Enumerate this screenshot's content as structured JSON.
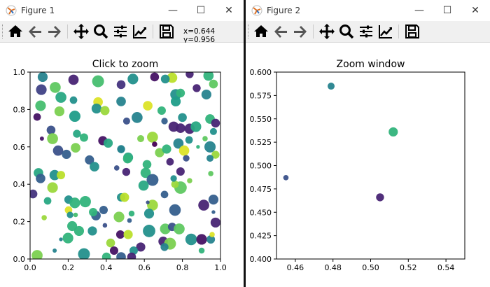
{
  "windows": [
    {
      "title": "Figure 1",
      "coords": "x=0.644 y=0.956",
      "controls": {
        "minimize": "—",
        "maximize": "☐",
        "close": "✕"
      }
    },
    {
      "title": "Figure 2",
      "coords": "",
      "controls": {
        "minimize": "—",
        "maximize": "☐",
        "close": "✕"
      }
    }
  ],
  "toolbar": [
    "home-icon",
    "back-icon",
    "forward-icon",
    "pan-icon",
    "zoom-icon",
    "configure-subplots-icon",
    "edit-axis-icon",
    "save-icon"
  ],
  "chart_data": [
    {
      "type": "scatter",
      "title": "Click to zoom",
      "xlim": [
        0,
        1
      ],
      "ylim": [
        0,
        1
      ],
      "xticks": [
        "0.0",
        "0.2",
        "0.4",
        "0.6",
        "0.8",
        "1.0"
      ],
      "yticks": [
        "0.0",
        "0.2",
        "0.4",
        "0.6",
        "0.8",
        "1.0"
      ],
      "colormap": "viridis",
      "grid": false,
      "points": [
        [
          0.066,
          0.974,
          0.45,
          140
        ],
        [
          0.228,
          0.959,
          0.1,
          150
        ],
        [
          0.357,
          0.951,
          0.7,
          200
        ],
        [
          0.059,
          0.906,
          0.2,
          160
        ],
        [
          0.132,
          0.918,
          0.75,
          170
        ],
        [
          0.162,
          0.865,
          0.6,
          170
        ],
        [
          0.228,
          0.85,
          0.5,
          80
        ],
        [
          0.055,
          0.82,
          0.7,
          160
        ],
        [
          0.154,
          0.79,
          0.8,
          140
        ],
        [
          0.235,
          0.764,
          0.55,
          180
        ],
        [
          0.037,
          0.76,
          0.05,
          80
        ],
        [
          0.357,
          0.84,
          0.95,
          130
        ],
        [
          0.349,
          0.805,
          0.5,
          140
        ],
        [
          0.393,
          0.794,
          0.85,
          120
        ],
        [
          0.11,
          0.69,
          0.25,
          110
        ],
        [
          0.118,
          0.644,
          0.8,
          170
        ],
        [
          0.062,
          0.644,
          0.05,
          25
        ],
        [
          0.246,
          0.67,
          0.6,
          90
        ],
        [
          0.283,
          0.65,
          0.65,
          100
        ],
        [
          0.382,
          0.633,
          0.05,
          120
        ],
        [
          0.41,
          0.62,
          0.6,
          120
        ],
        [
          0.239,
          0.595,
          0.8,
          130
        ],
        [
          0.147,
          0.58,
          0.25,
          150
        ],
        [
          0.191,
          0.56,
          0.3,
          120
        ],
        [
          0.312,
          0.53,
          0.3,
          120
        ],
        [
          0.478,
          0.588,
          0.45,
          90
        ],
        [
          0.478,
          0.843,
          0.45,
          130
        ],
        [
          0.478,
          0.933,
          0.15,
          110
        ],
        [
          0.54,
          0.963,
          0.5,
          160
        ],
        [
          0.654,
          0.974,
          0.05,
          110
        ],
        [
          0.746,
          0.97,
          0.9,
          150
        ],
        [
          0.71,
          0.963,
          0.5,
          110
        ],
        [
          0.838,
          0.989,
          0.1,
          90
        ],
        [
          0.937,
          0.981,
          0.65,
          150
        ],
        [
          0.963,
          0.936,
          0.75,
          110
        ],
        [
          0.875,
          0.914,
          0.1,
          90
        ],
        [
          0.926,
          0.88,
          0.45,
          140
        ],
        [
          0.765,
          0.88,
          0.5,
          170
        ],
        [
          0.79,
          0.888,
          0.65,
          110
        ],
        [
          0.765,
          0.843,
          0.55,
          140
        ],
        [
          0.618,
          0.82,
          0.95,
          130
        ],
        [
          0.691,
          0.794,
          0.65,
          100
        ],
        [
          0.562,
          0.757,
          0.45,
          170
        ],
        [
          0.507,
          0.738,
          0.25,
          70
        ],
        [
          0.706,
          0.738,
          0.3,
          60
        ],
        [
          0.754,
          0.708,
          0.1,
          150
        ],
        [
          0.79,
          0.7,
          0.1,
          130
        ],
        [
          0.838,
          0.697,
          0.1,
          150
        ],
        [
          0.871,
          0.708,
          0.6,
          160
        ],
        [
          0.8,
          0.757,
          0.5,
          110
        ],
        [
          0.945,
          0.749,
          0.65,
          130
        ],
        [
          0.974,
          0.727,
          0.1,
          110
        ],
        [
          0.963,
          0.682,
          0.5,
          70
        ],
        [
          0.581,
          0.644,
          0.8,
          70
        ],
        [
          0.643,
          0.652,
          0.85,
          170
        ],
        [
          0.654,
          0.614,
          0.0,
          40
        ],
        [
          0.68,
          0.569,
          0.8,
          120
        ],
        [
          0.717,
          0.588,
          0.65,
          120
        ],
        [
          0.779,
          0.618,
          0.45,
          150
        ],
        [
          0.809,
          0.58,
          0.95,
          150
        ],
        [
          0.835,
          0.637,
          0.5,
          80
        ],
        [
          0.919,
          0.644,
          0.75,
          40
        ],
        [
          0.945,
          0.6,
          0.45,
          180
        ],
        [
          0.882,
          0.6,
          0.65,
          20
        ],
        [
          0.974,
          0.558,
          0.85,
          90
        ],
        [
          0.945,
          0.539,
          0.45,
          70
        ],
        [
          0.735,
          0.52,
          0.1,
          80
        ],
        [
          0.82,
          0.539,
          0.25,
          60
        ],
        [
          0.614,
          0.506,
          0.65,
          110
        ],
        [
          0.515,
          0.543,
          0.6,
          140
        ],
        [
          0.044,
          0.461,
          0.6,
          130
        ],
        [
          0.055,
          0.431,
          0.3,
          130
        ],
        [
          0.129,
          0.449,
          0.5,
          150
        ],
        [
          0.162,
          0.449,
          0.9,
          100
        ],
        [
          0.118,
          0.382,
          0.85,
          160
        ],
        [
          0.015,
          0.348,
          0.15,
          110
        ],
        [
          0.092,
          0.311,
          0.6,
          80
        ],
        [
          0.202,
          0.318,
          0.5,
          100
        ],
        [
          0.235,
          0.3,
          0.65,
          160
        ],
        [
          0.29,
          0.307,
          0.65,
          180
        ],
        [
          0.202,
          0.262,
          0.95,
          80
        ],
        [
          0.21,
          0.236,
          0.5,
          60
        ],
        [
          0.239,
          0.236,
          0.7,
          30
        ],
        [
          0.346,
          0.232,
          0.3,
          130
        ],
        [
          0.331,
          0.251,
          0.65,
          100
        ],
        [
          0.386,
          0.262,
          0.3,
          100
        ],
        [
          0.074,
          0.221,
          0.85,
          40
        ],
        [
          0.221,
          0.176,
          0.65,
          140
        ],
        [
          0.257,
          0.15,
          0.65,
          140
        ],
        [
          0.327,
          0.15,
          0.5,
          120
        ],
        [
          0.393,
          0.18,
          0.25,
          30
        ],
        [
          0.199,
          0.112,
          0.65,
          160
        ],
        [
          0.162,
          0.105,
          0.45,
          20
        ],
        [
          0.467,
          0.225,
          0.8,
          160
        ],
        [
          0.474,
          0.131,
          0.05,
          100
        ],
        [
          0.423,
          0.086,
          0.85,
          110
        ],
        [
          0.441,
          0.045,
          0.05,
          100
        ],
        [
          0.478,
          0.011,
          0.3,
          130
        ],
        [
          0.037,
          0.019,
          0.8,
          170
        ],
        [
          0.283,
          0.026,
          0.5,
          200
        ],
        [
          0.129,
          0.045,
          0.45,
          25
        ],
        [
          0.401,
          0.011,
          0.65,
          110
        ],
        [
          0.478,
          0.33,
          0.5,
          100
        ],
        [
          0.338,
          0.494,
          0.5,
          130
        ],
        [
          0.455,
          0.487,
          0.25,
          40
        ],
        [
          0.479,
          0.585,
          0.45,
          70
        ],
        [
          0.512,
          0.536,
          0.65,
          120
        ],
        [
          0.505,
          0.466,
          0.1,
          90
        ],
        [
          0.607,
          0.461,
          0.65,
          150
        ],
        [
          0.643,
          0.423,
          0.3,
          200
        ],
        [
          0.596,
          0.393,
          0.6,
          150
        ],
        [
          0.79,
          0.382,
          0.75,
          220
        ],
        [
          0.761,
          0.4,
          0.85,
          80
        ],
        [
          0.79,
          0.468,
          0.1,
          100
        ],
        [
          0.754,
          0.431,
          0.5,
          60
        ],
        [
          0.838,
          0.419,
          0.8,
          40
        ],
        [
          0.949,
          0.457,
          0.75,
          40
        ],
        [
          0.706,
          0.345,
          0.3,
          80
        ],
        [
          0.643,
          0.288,
          0.85,
          170
        ],
        [
          0.618,
          0.303,
          0.25,
          20
        ],
        [
          0.625,
          0.243,
          0.5,
          140
        ],
        [
          0.761,
          0.262,
          0.3,
          190
        ],
        [
          0.912,
          0.288,
          0.1,
          170
        ],
        [
          0.963,
          0.318,
          0.3,
          140
        ],
        [
          0.496,
          0.33,
          0.9,
          120
        ],
        [
          0.533,
          0.243,
          0.65,
          50
        ],
        [
          0.522,
          0.206,
          0.3,
          30
        ],
        [
          0.974,
          0.195,
          0.1,
          140
        ],
        [
          0.963,
          0.251,
          0.3,
          20
        ],
        [
          0.625,
          0.15,
          0.5,
          220
        ],
        [
          0.71,
          0.161,
          0.75,
          160
        ],
        [
          0.746,
          0.172,
          0.25,
          100
        ],
        [
          0.783,
          0.161,
          0.75,
          170
        ],
        [
          0.515,
          0.131,
          0.9,
          120
        ],
        [
          0.846,
          0.105,
          0.5,
          190
        ],
        [
          0.901,
          0.105,
          0.05,
          160
        ],
        [
          0.949,
          0.105,
          0.45,
          100
        ],
        [
          0.956,
          0.131,
          0.95,
          40
        ],
        [
          0.699,
          0.094,
          0.1,
          130
        ],
        [
          0.735,
          0.082,
          0.8,
          200
        ],
        [
          0.706,
          0.064,
          0.45,
          90
        ],
        [
          0.581,
          0.064,
          0.1,
          120
        ],
        [
          0.544,
          0.045,
          0.5,
          100
        ],
        [
          0.533,
          0.011,
          0.1,
          110
        ],
        [
          0.901,
          0.045,
          0.65,
          50
        ]
      ]
    },
    {
      "type": "scatter",
      "title": "Zoom window",
      "xlim": [
        0.45,
        0.55
      ],
      "ylim": [
        0.4,
        0.6
      ],
      "xticks": [
        "0.46",
        "0.48",
        "0.50",
        "0.52",
        "0.54"
      ],
      "yticks": [
        "0.400",
        "0.425",
        "0.450",
        "0.475",
        "0.500",
        "0.525",
        "0.550",
        "0.575",
        "0.600"
      ],
      "colormap": "viridis",
      "grid": false,
      "points": [
        [
          0.455,
          0.487,
          0.25,
          40
        ],
        [
          0.479,
          0.585,
          0.45,
          70
        ],
        [
          0.512,
          0.536,
          0.65,
          120
        ],
        [
          0.505,
          0.466,
          0.1,
          90
        ]
      ]
    }
  ]
}
